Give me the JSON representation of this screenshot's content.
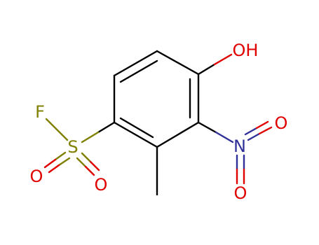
{
  "atoms": [
    {
      "label": "OH"
    },
    {
      "label": "N"
    },
    {
      "label": "O"
    },
    {
      "label": "O"
    },
    {
      "label": "S"
    },
    {
      "label": "F"
    },
    {
      "label": "O"
    },
    {
      "label": "O"
    }
  ]
}
